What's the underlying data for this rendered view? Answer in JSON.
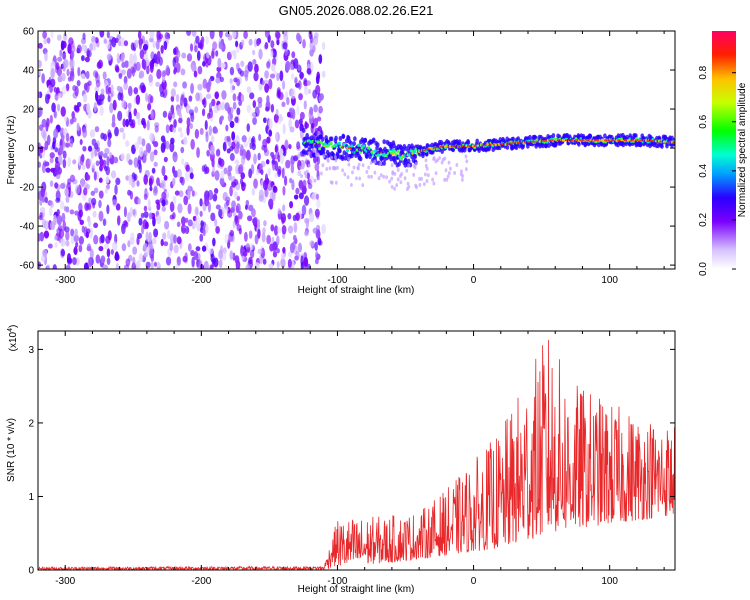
{
  "title": "GN05.2026.088.02.26.E21",
  "chart_data": [
    {
      "type": "heatmap",
      "name": "spectrogram",
      "xlabel": "Height of straight line (km)",
      "ylabel": "Frequency (Hz)",
      "xlim": [
        -320,
        148
      ],
      "ylim": [
        -62,
        60
      ],
      "xticks": [
        -300,
        -200,
        -100,
        0,
        100
      ],
      "yticks": [
        -60,
        -40,
        -20,
        0,
        20,
        40,
        60
      ],
      "noise_region_x": [
        -320,
        -115
      ],
      "signal_track": {
        "x": [
          -130,
          -110,
          -90,
          -70,
          -50,
          -40,
          -30,
          -20,
          0,
          20,
          40,
          60,
          80,
          100,
          120,
          148
        ],
        "freq": [
          4,
          1,
          0,
          -2,
          -4,
          -2,
          0,
          1,
          1,
          2,
          3,
          4,
          4,
          4,
          4,
          3
        ]
      },
      "colorbar": {
        "label": "Normalized spectral amplitude",
        "range": [
          0.0,
          0.97
        ],
        "ticks": [
          0.0,
          0.2,
          0.4,
          0.6,
          0.8
        ]
      }
    },
    {
      "type": "line",
      "name": "snr",
      "xlabel": "Height of straight line (km)",
      "ylabel": "SNR (10 * v/v)",
      "scale_label_base": "(x10",
      "scale_label_exp": "4",
      "scale_label_end": ")",
      "xlim": [
        -320,
        148
      ],
      "ylim": [
        0,
        3.25
      ],
      "xticks": [
        -300,
        -200,
        -100,
        0,
        100
      ],
      "yticks": [
        0,
        1,
        2,
        3
      ],
      "color": "#e8282a",
      "envelope": {
        "x": [
          -320,
          -110,
          -100,
          -60,
          -40,
          -20,
          0,
          20,
          40,
          55,
          70,
          90,
          110,
          130,
          148
        ],
        "min": [
          0.0,
          0.0,
          0.05,
          0.1,
          0.15,
          0.2,
          0.25,
          0.3,
          0.4,
          0.5,
          0.55,
          0.6,
          0.65,
          0.7,
          0.75
        ],
        "max": [
          0.04,
          0.05,
          0.7,
          0.75,
          0.8,
          1.1,
          1.5,
          1.9,
          2.7,
          3.25,
          2.6,
          2.4,
          2.2,
          2.1,
          2.0
        ]
      }
    }
  ]
}
